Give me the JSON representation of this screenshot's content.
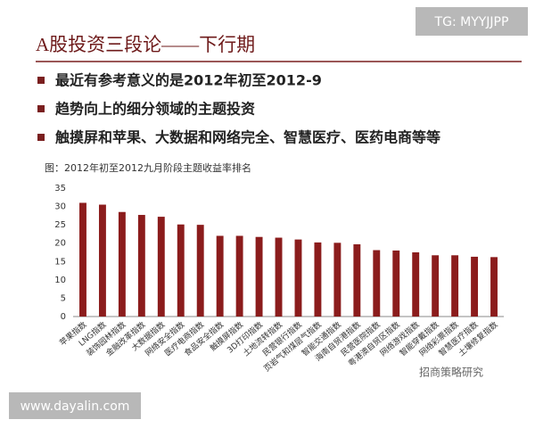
{
  "header": {
    "title": "A股投资三段论——下行期"
  },
  "bullets": [
    "最近有参考意义的是2012年初至2012-9",
    "趋势向上的细分领域的主题投资",
    "触摸屏和苹果、大数据和网络完全、智慧医疗、医药电商等等"
  ],
  "watermark": "TG: MYYJJPP",
  "footer_url": "www.dayalin.com",
  "logo": "招商策略研究",
  "chart_data": {
    "type": "bar",
    "title": "图：2012年初至2012九月阶段主题收益率排名",
    "categories": [
      "苹果指数",
      "LNG指数",
      "装饰园林指数",
      "金融改革指数",
      "大数据指数",
      "网络安全指数",
      "医疗电商指数",
      "食品安全指数",
      "触摸屏指数",
      "3D打印指数",
      "土地流转指数",
      "民营银行指数",
      "页岩气和煤层气指数",
      "智能交通指数",
      "海南自贸港指数",
      "民营医院指数",
      "粤港澳自贸区指数",
      "网络游戏指数",
      "智能穿戴指数",
      "网络彩票指数",
      "智慧医疗指数",
      "土壤修复指数"
    ],
    "values": [
      31,
      30.5,
      28.5,
      27.7,
      27.2,
      25.1,
      25,
      22,
      22,
      21.7,
      21.5,
      21,
      20.2,
      20.1,
      19.7,
      18.1,
      18,
      17.5,
      16.7,
      16.7,
      16.3,
      16.2
    ],
    "color": "#8b1c1c",
    "ylim": [
      0,
      35
    ],
    "yticks": [
      0,
      5,
      10,
      15,
      20,
      25,
      30,
      35
    ],
    "grid": false
  }
}
